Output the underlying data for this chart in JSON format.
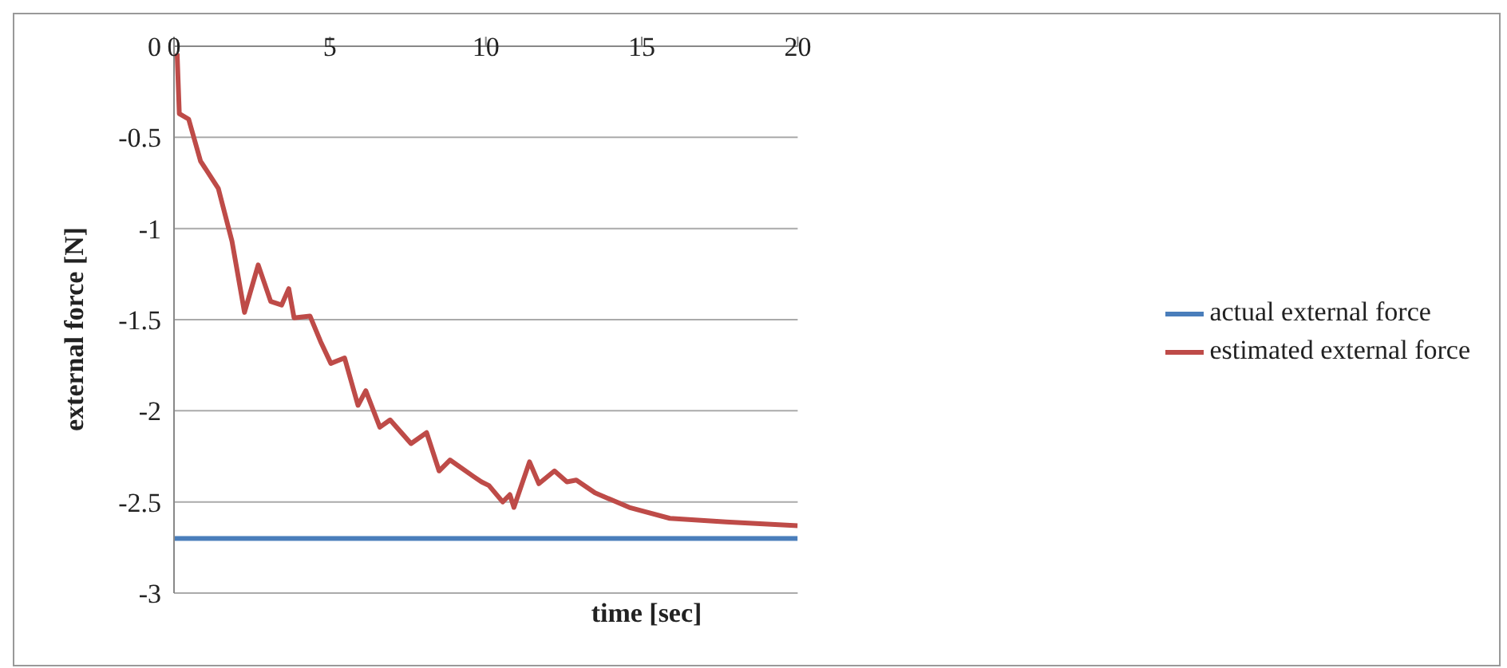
{
  "chart_data": {
    "type": "line",
    "xlabel": "time [sec]",
    "ylabel": "external force [N]",
    "xlim": [
      0,
      20
    ],
    "xticks": [
      0,
      5,
      10,
      15,
      20
    ],
    "ylim": [
      -3,
      0
    ],
    "yticks": [
      0,
      -0.5,
      -1,
      -1.5,
      -2,
      -2.5,
      -3
    ],
    "grid": "y",
    "legend": "right",
    "marker": "none",
    "line_style": "solid",
    "series": [
      {
        "name": "actual external force",
        "color": "#4a7ebb",
        "x": [
          0,
          20
        ],
        "values": [
          -2.7,
          -2.7
        ]
      },
      {
        "name": "estimated external force",
        "color": "#be4b48",
        "x": [
          0.1,
          0.17,
          0.47,
          0.85,
          1.42,
          1.86,
          2.26,
          2.7,
          3.1,
          3.45,
          3.68,
          3.85,
          4.36,
          4.7,
          5.03,
          5.47,
          5.9,
          6.15,
          6.6,
          6.93,
          7.6,
          8.1,
          8.5,
          8.85,
          9.6,
          9.86,
          10.1,
          10.54,
          10.77,
          10.9,
          11.4,
          11.7,
          12.2,
          12.6,
          12.9,
          13.5,
          14.6,
          15.9,
          17.7,
          20
        ],
        "values": [
          -0.04,
          -0.37,
          -0.4,
          -0.63,
          -0.78,
          -1.07,
          -1.46,
          -1.2,
          -1.4,
          -1.42,
          -1.33,
          -1.49,
          -1.48,
          -1.62,
          -1.74,
          -1.71,
          -1.97,
          -1.89,
          -2.09,
          -2.05,
          -2.18,
          -2.12,
          -2.33,
          -2.27,
          -2.36,
          -2.39,
          -2.41,
          -2.5,
          -2.46,
          -2.53,
          -2.28,
          -2.4,
          -2.33,
          -2.39,
          -2.38,
          -2.45,
          -2.53,
          -2.59,
          -2.61,
          -2.63
        ]
      }
    ]
  }
}
